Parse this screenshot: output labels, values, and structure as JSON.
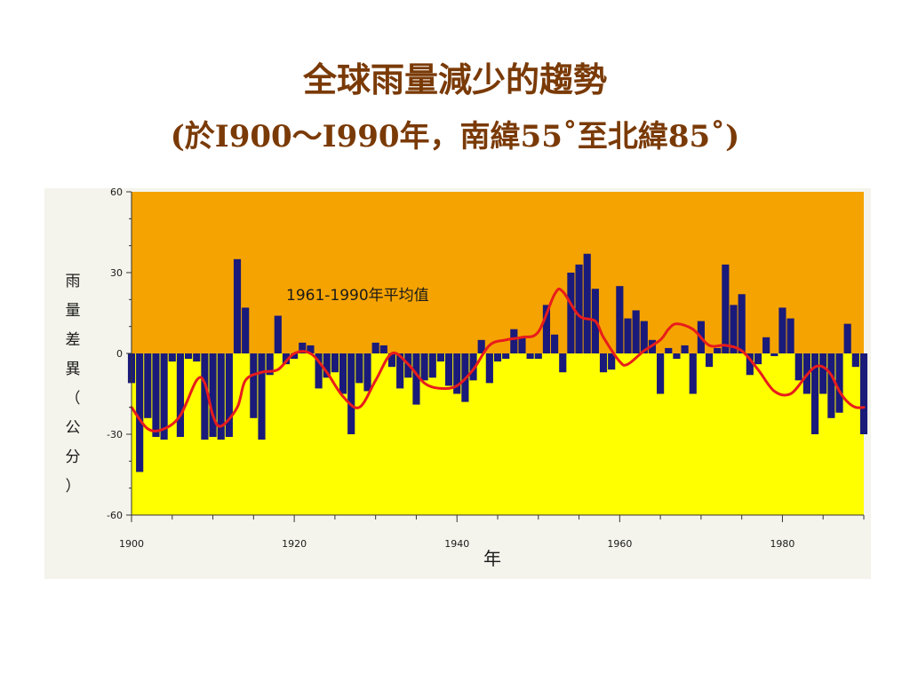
{
  "slide": {
    "title_line1": "全球雨量減少的趨勢",
    "title_line2": "(於I900～I990年，南緯55˚至北緯85˚)"
  },
  "colors": {
    "title": "#7a3a06",
    "positive_region": "#f5a300",
    "negative_region": "#ffff00",
    "bars": "#1a1a7a",
    "trend": "#e81c1c"
  },
  "chart_data": {
    "type": "bar",
    "title": "",
    "xlabel": "年",
    "ylabel": [
      "雨",
      "量",
      "差",
      "異",
      "（",
      "公",
      "分",
      "）"
    ],
    "annotation": "1961-1990年平均值",
    "xlim": [
      1900,
      1990
    ],
    "ylim": [
      -60,
      60
    ],
    "yticks": [
      {
        "value": 60,
        "label": "60"
      },
      {
        "value": 30,
        "label": "30"
      },
      {
        "value": 0,
        "label": "0"
      },
      {
        "value": -30,
        "label": "-30"
      },
      {
        "value": -60,
        "label": "-60"
      }
    ],
    "xticks": [
      {
        "value": 1900,
        "label": "1900"
      },
      {
        "value": 1920,
        "label": "1920"
      },
      {
        "value": 1940,
        "label": "1940"
      },
      {
        "value": 1960,
        "label": "1960"
      },
      {
        "value": 1980,
        "label": "1980"
      }
    ],
    "grid": false,
    "bars": {
      "x": [
        1900,
        1901,
        1902,
        1903,
        1904,
        1905,
        1906,
        1907,
        1908,
        1909,
        1910,
        1911,
        1912,
        1913,
        1914,
        1915,
        1916,
        1917,
        1918,
        1919,
        1920,
        1921,
        1922,
        1923,
        1924,
        1925,
        1926,
        1927,
        1928,
        1929,
        1930,
        1931,
        1932,
        1933,
        1934,
        1935,
        1936,
        1937,
        1938,
        1939,
        1940,
        1941,
        1942,
        1943,
        1944,
        1945,
        1946,
        1947,
        1948,
        1949,
        1950,
        1951,
        1952,
        1953,
        1954,
        1955,
        1956,
        1957,
        1958,
        1959,
        1960,
        1961,
        1962,
        1963,
        1964,
        1965,
        1966,
        1967,
        1968,
        1969,
        1970,
        1971,
        1972,
        1973,
        1974,
        1975,
        1976,
        1977,
        1978,
        1979,
        1980,
        1981,
        1982,
        1983,
        1984,
        1985,
        1986,
        1987,
        1988,
        1989,
        1990
      ],
      "values": [
        -11,
        -44,
        -24,
        -31,
        -32,
        -3,
        -31,
        -2,
        -3,
        -32,
        -31,
        -32,
        -31,
        35,
        17,
        -24,
        -32,
        -8,
        14,
        -4,
        -2,
        4,
        3,
        -13,
        -9,
        -7,
        -15,
        -30,
        -11,
        -14,
        4,
        3,
        -5,
        -13,
        -9,
        -19,
        -10,
        -9,
        -3,
        -12,
        -15,
        -18,
        -10,
        5,
        -11,
        -3,
        -2,
        9,
        6,
        -2,
        -2,
        18,
        7,
        -7,
        30,
        33,
        37,
        24,
        -7,
        -6,
        25,
        13,
        16,
        12,
        5,
        -15,
        2,
        -2,
        3,
        -15,
        12,
        -5,
        2,
        33,
        18,
        22,
        -8,
        -4,
        6,
        -1,
        17,
        13,
        -10,
        -15,
        -30,
        -15,
        -24,
        -22,
        11,
        -5,
        -30
      ]
    },
    "trend": {
      "x": [
        1900,
        1902,
        1904,
        1906,
        1908,
        1909,
        1910,
        1911,
        1913,
        1914,
        1916,
        1918,
        1920,
        1922,
        1924,
        1926,
        1928,
        1930,
        1932,
        1934,
        1936,
        1938,
        1940,
        1942,
        1944,
        1946,
        1948,
        1950,
        1952,
        1953,
        1955,
        1957,
        1958,
        1960,
        1961,
        1963,
        1965,
        1966,
        1967,
        1969,
        1971,
        1973,
        1975,
        1977,
        1979,
        1981,
        1983,
        1984,
        1985,
        1986,
        1987,
        1988,
        1989,
        1990
      ],
      "values": [
        -20,
        -28,
        -28,
        -23,
        -10,
        -11,
        -23,
        -27,
        -20,
        -10,
        -7,
        -6,
        0,
        0,
        -7,
        -16,
        -20,
        -10,
        0,
        -4,
        -11,
        -13,
        -12,
        -6,
        3,
        5,
        6,
        8,
        22,
        23,
        14,
        12,
        6,
        -3,
        -4,
        1,
        5,
        9,
        11,
        9,
        3,
        3,
        1,
        -6,
        -14,
        -15,
        -8,
        -5,
        -5,
        -8,
        -14,
        -18,
        -20,
        -20
      ]
    }
  }
}
